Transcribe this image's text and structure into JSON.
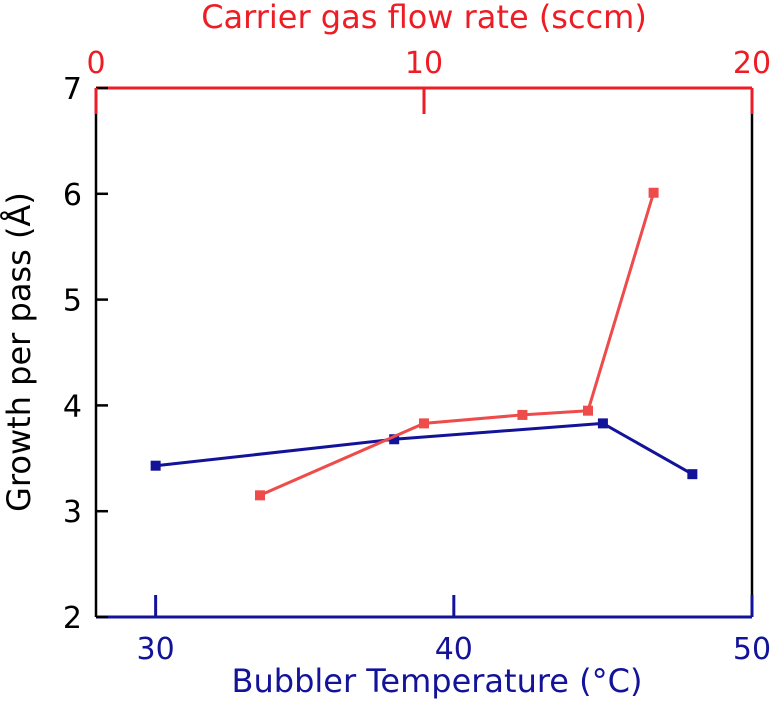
{
  "chart_data": {
    "type": "line",
    "ylabel": "Growth per pass (Å)",
    "ylim": [
      2,
      7
    ],
    "yticks": [
      "2",
      "3",
      "4",
      "5",
      "6",
      "7"
    ],
    "bottom_axis": {
      "label": "Bubbler Temperature (°C)",
      "range": [
        28,
        50
      ],
      "ticks": [
        "30",
        "40",
        "50"
      ],
      "color": "#13139a"
    },
    "top_axis": {
      "label": "Carrier gas flow rate (sccm)",
      "range": [
        0,
        20
      ],
      "ticks": [
        "0",
        "10",
        "20"
      ],
      "color": "#ee1c24"
    },
    "series": [
      {
        "axis": "bottom",
        "color": "#13139a",
        "x": [
          30,
          38,
          45,
          48
        ],
        "y": [
          3.43,
          3.68,
          3.83,
          3.35
        ]
      },
      {
        "axis": "top",
        "color": "#ee4b4b",
        "x": [
          5,
          10,
          13,
          15,
          17
        ],
        "y": [
          3.15,
          3.83,
          3.91,
          3.95,
          6.01
        ]
      }
    ]
  }
}
